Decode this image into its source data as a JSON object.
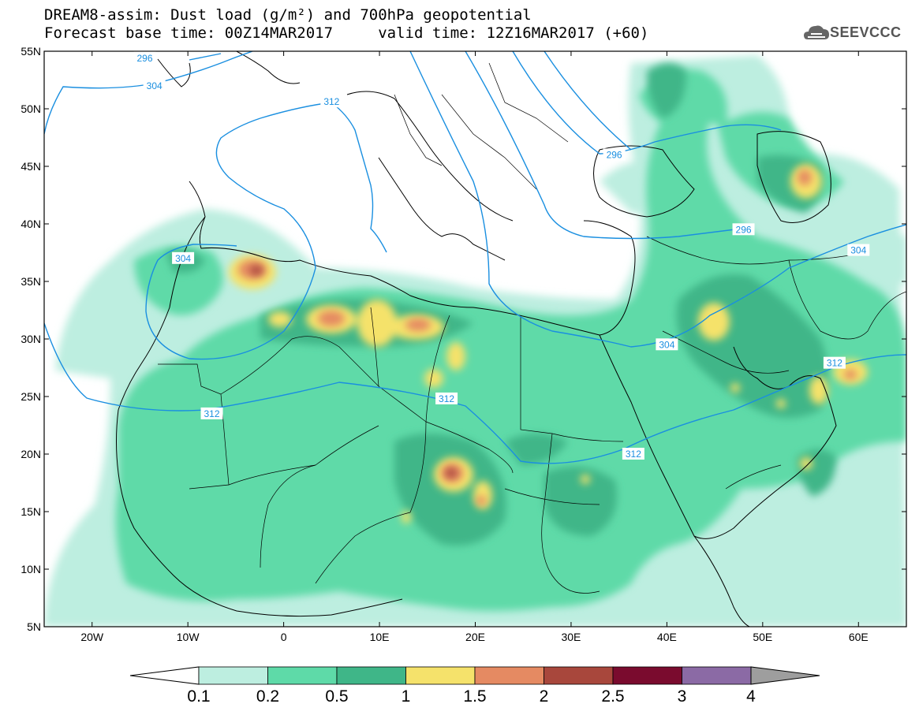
{
  "header": {
    "line1": "DREAM8-assim: Dust load (g/m²) and 700hPa geopotential",
    "line2": "Forecast base time: 00Z14MAR2017     valid time: 12Z16MAR2017 (+60)",
    "logo_text": "SEEVCCC"
  },
  "map": {
    "lon_ticks": [
      "20W",
      "10W",
      "0",
      "10E",
      "20E",
      "30E",
      "40E",
      "50E",
      "60E"
    ],
    "lat_ticks": [
      "55N",
      "50N",
      "45N",
      "40N",
      "35N",
      "30N",
      "25N",
      "20N",
      "15N",
      "10N",
      "5N"
    ],
    "lon_range": [
      -25,
      65
    ],
    "lat_range": [
      5,
      55
    ],
    "isolines": [
      {
        "label": "304",
        "lon": -10.5,
        "lat": 37.0
      },
      {
        "label": "304",
        "lon": -13.5,
        "lat": 52.0
      },
      {
        "label": "312",
        "lon": 5.0,
        "lat": 50.6
      },
      {
        "label": "312",
        "lon": -7.5,
        "lat": 23.5
      },
      {
        "label": "312",
        "lon": 17.0,
        "lat": 24.8
      },
      {
        "label": "312",
        "lon": 36.5,
        "lat": 20.0
      },
      {
        "label": "312",
        "lon": 57.5,
        "lat": 27.9
      },
      {
        "label": "304",
        "lon": 40.0,
        "lat": 29.5
      },
      {
        "label": "304",
        "lon": 60.0,
        "lat": 37.7
      },
      {
        "label": "296",
        "lon": 48.0,
        "lat": 39.5
      },
      {
        "label": "296",
        "lon": 34.5,
        "lat": 46.0
      },
      {
        "label": "296",
        "lon": -14.5,
        "lat": 54.4
      }
    ]
  },
  "colorbar": {
    "labels": [
      "0.1",
      "0.2",
      "0.5",
      "1",
      "1.5",
      "2",
      "2.5",
      "3",
      "4"
    ],
    "colors": [
      "#bdeee0",
      "#5edaa8",
      "#3fb688",
      "#f5e26b",
      "#e58a62",
      "#a8473c",
      "#7a0b2e",
      "#8b6aa5"
    ],
    "below_color": "#ffffff",
    "above_color": "#9e9e9e"
  },
  "colors": {
    "isoline": "#1a8fe0",
    "land_outline": "#000000"
  }
}
